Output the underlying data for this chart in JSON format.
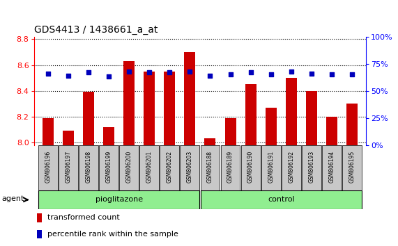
{
  "title": "GDS4413 / 1438661_a_at",
  "samples": [
    "GSM806196",
    "GSM806197",
    "GSM806198",
    "GSM806199",
    "GSM806200",
    "GSM806201",
    "GSM806202",
    "GSM806203",
    "GSM806188",
    "GSM806189",
    "GSM806190",
    "GSM806191",
    "GSM806192",
    "GSM806193",
    "GSM806194",
    "GSM806195"
  ],
  "transformed_count": [
    8.19,
    8.09,
    8.39,
    8.12,
    8.63,
    8.55,
    8.55,
    8.7,
    8.03,
    8.19,
    8.45,
    8.27,
    8.5,
    8.4,
    8.2,
    8.3
  ],
  "percentile_rank": [
    66,
    64,
    67,
    63,
    68,
    67,
    67,
    68,
    64,
    65,
    67,
    65,
    68,
    66,
    65,
    65
  ],
  "group_labels": [
    "pioglitazone",
    "control"
  ],
  "group_sizes": [
    8,
    8
  ],
  "bar_color": "#CC0000",
  "dot_color": "#0000BB",
  "ylim_left": [
    7.98,
    8.82
  ],
  "ylim_right": [
    0,
    100
  ],
  "yticks_left": [
    8.0,
    8.2,
    8.4,
    8.6,
    8.8
  ],
  "yticks_right": [
    0,
    25,
    50,
    75,
    100
  ],
  "background_color": "#ffffff",
  "agent_label": "agent",
  "legend_items": [
    "transformed count",
    "percentile rank within the sample"
  ],
  "bar_width": 0.55,
  "sample_box_color": "#C8C8C8",
  "green_color": "#90EE90"
}
